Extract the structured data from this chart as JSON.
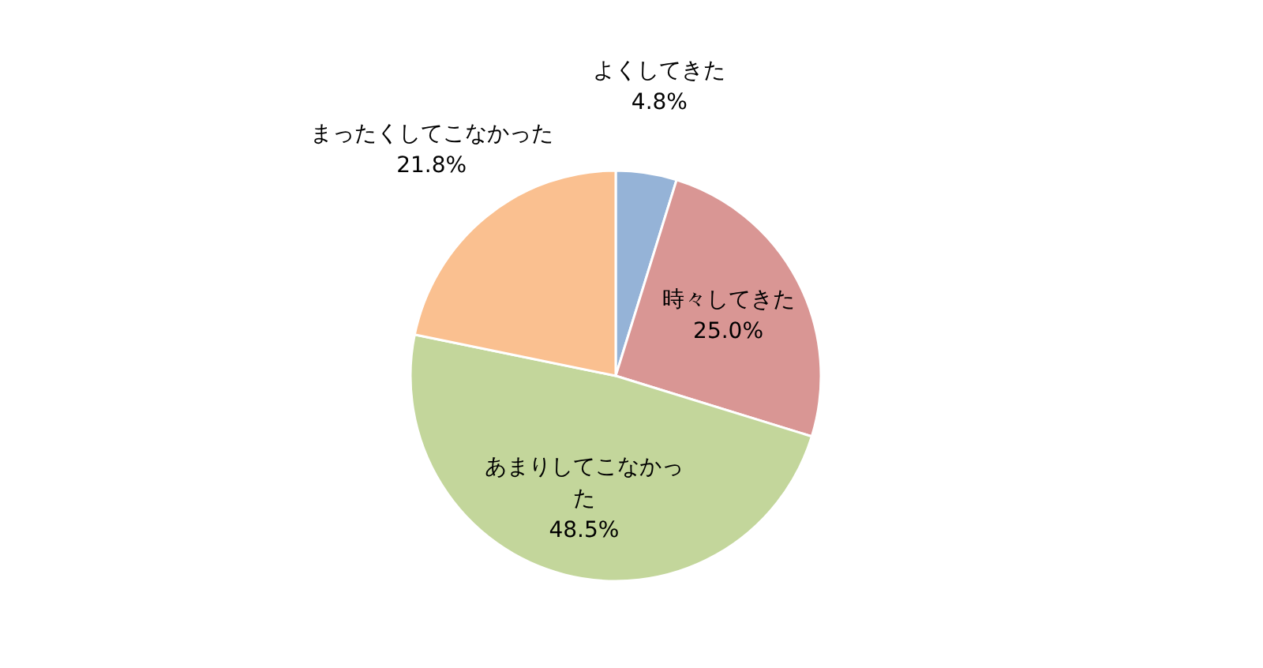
{
  "chart_data": {
    "type": "pie",
    "categories": [
      "よくしてきた",
      "時々してきた",
      "あまりしてこなかった",
      "まったくしてこなかった"
    ],
    "values": [
      4.8,
      25.0,
      48.5,
      21.8
    ],
    "value_labels": [
      "4.8%",
      "25.0%",
      "48.5%",
      "21.8%"
    ],
    "colors": [
      "#95b3d7",
      "#d99694",
      "#c3d69b",
      "#fac090"
    ]
  }
}
